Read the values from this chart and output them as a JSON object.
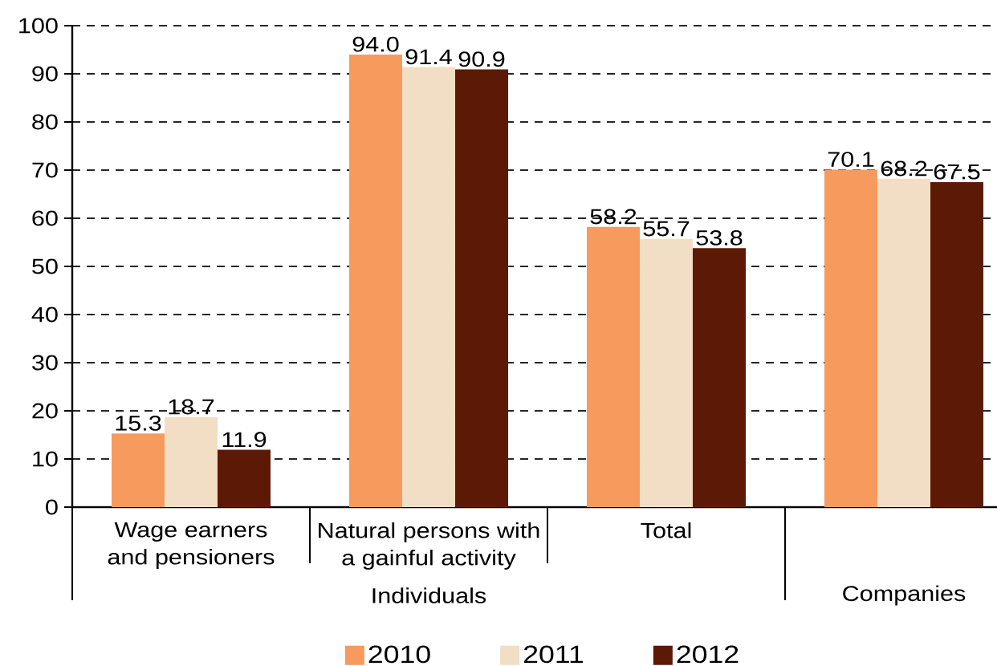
{
  "chart_data": {
    "type": "bar",
    "categories": [
      "Wage earners and pensioners",
      "Natural persons with a gainful activity",
      "Total",
      null
    ],
    "series": [
      {
        "name": "2010",
        "color": "#f79a5e",
        "values": [
          15.3,
          94.0,
          58.2,
          70.1
        ],
        "value_labels": [
          "15.3",
          "94.0",
          "58.2",
          "70.1"
        ]
      },
      {
        "name": "2011",
        "color": "#f2dec4",
        "values": [
          18.7,
          91.4,
          55.7,
          68.2
        ],
        "value_labels": [
          "18.7",
          "91.4",
          "55.7",
          "68.2"
        ]
      },
      {
        "name": "2012",
        "color": "#5c1a06",
        "values": [
          11.9,
          90.9,
          53.8,
          67.5
        ],
        "value_labels": [
          "11.9",
          "90.9",
          "53.8",
          "67.5"
        ]
      }
    ],
    "ylim": [
      0,
      100
    ],
    "yticks": [
      0,
      10,
      20,
      30,
      40,
      50,
      60,
      70,
      80,
      90,
      100
    ],
    "grid": "y",
    "legend": "bottom",
    "annotations": [
      "Individuals",
      "Companies"
    ]
  }
}
